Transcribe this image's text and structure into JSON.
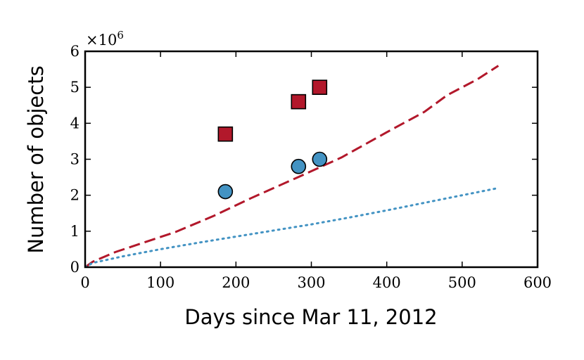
{
  "chart_data": {
    "type": "scatter",
    "title": "",
    "xlabel": "Days since Mar 11, 2012",
    "ylabel": "Number of objects",
    "y_offset_label": "×10",
    "y_offset_exponent": "6",
    "xlim": [
      0,
      600
    ],
    "ylim": [
      0,
      6
    ],
    "x_ticks": [
      0,
      100,
      200,
      300,
      400,
      500,
      600
    ],
    "y_ticks": [
      0,
      1,
      2,
      3,
      4,
      5,
      6
    ],
    "grid": false,
    "legend": "none",
    "series": [
      {
        "style": "dashed-line",
        "color": "#b2182b",
        "x": [
          0,
          10,
          40,
          80,
          120,
          170,
          220,
          280,
          340,
          400,
          450,
          480,
          520,
          548
        ],
        "y": [
          0,
          0.15,
          0.42,
          0.7,
          0.98,
          1.42,
          1.92,
          2.48,
          3.05,
          3.75,
          4.32,
          4.78,
          5.22,
          5.6
        ]
      },
      {
        "style": "dotted-line",
        "color": "#4393c3",
        "x": [
          0,
          10,
          50,
          100,
          150,
          200,
          250,
          300,
          350,
          400,
          450,
          500,
          548
        ],
        "y": [
          0,
          0.12,
          0.3,
          0.5,
          0.68,
          0.85,
          1.02,
          1.19,
          1.38,
          1.58,
          1.79,
          2.0,
          2.2
        ]
      },
      {
        "style": "square-markers",
        "color": "#b2182b",
        "x": [
          186,
          283,
          311
        ],
        "y": [
          3.7,
          4.6,
          5.0
        ]
      },
      {
        "style": "circle-markers",
        "color": "#4393c3",
        "x": [
          186,
          283,
          311
        ],
        "y": [
          2.1,
          2.8,
          3.0
        ]
      }
    ]
  }
}
